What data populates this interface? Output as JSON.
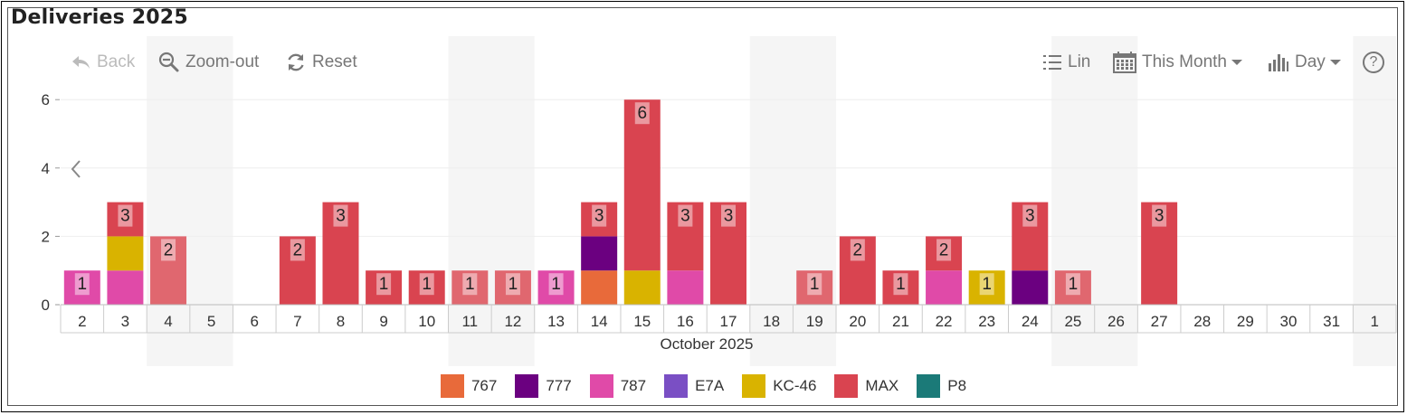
{
  "title": "Deliveries 2025",
  "toolbar": {
    "back_label": "Back",
    "zoom_out_label": "Zoom-out",
    "reset_label": "Reset",
    "scale_label": "Lin",
    "period_label": "This Month",
    "granularity_label": "Day",
    "help_label": "?"
  },
  "colors": {
    "767": "#e86a3a",
    "777": "#6b0080",
    "787": "#e04aa8",
    "E7A": "#7a4fc4",
    "KC-46": "#d9b300",
    "MAX": "#d94450",
    "P8": "#1b7a78",
    "MAX_light": "#e0676f",
    "gridline": "#eeeeee",
    "band": "#f5f5f5"
  },
  "chart_data": {
    "type": "bar",
    "stacked": true,
    "xlabel": "October 2025",
    "ylabel": "",
    "ylim": [
      0,
      6
    ],
    "yticks": [
      "0",
      "2",
      "4",
      "6"
    ],
    "categories": [
      "2",
      "3",
      "4",
      "5",
      "6",
      "7",
      "8",
      "9",
      "10",
      "11",
      "12",
      "13",
      "14",
      "15",
      "16",
      "17",
      "18",
      "19",
      "20",
      "21",
      "22",
      "23",
      "24",
      "25",
      "26",
      "27",
      "28",
      "29",
      "30",
      "31",
      "1"
    ],
    "weekend_bands": [
      "4-5",
      "11-12",
      "18-19",
      "25-26",
      "1"
    ],
    "series": [
      {
        "name": "767",
        "values": [
          0,
          0,
          0,
          0,
          0,
          0,
          0,
          0,
          0,
          0,
          0,
          0,
          1,
          0,
          0,
          0,
          0,
          0,
          0,
          0,
          0,
          0,
          0,
          0,
          0,
          0,
          0,
          0,
          0,
          0,
          0
        ]
      },
      {
        "name": "777",
        "values": [
          0,
          0,
          0,
          0,
          0,
          0,
          0,
          0,
          0,
          0,
          0,
          0,
          1,
          0,
          0,
          0,
          0,
          0,
          0,
          0,
          0,
          0,
          1,
          0,
          0,
          0,
          0,
          0,
          0,
          0,
          0
        ]
      },
      {
        "name": "787",
        "values": [
          1,
          1,
          0,
          0,
          0,
          0,
          0,
          0,
          0,
          0,
          0,
          1,
          0,
          0,
          1,
          0,
          0,
          0,
          0,
          0,
          1,
          0,
          0,
          0,
          0,
          0,
          0,
          0,
          0,
          0,
          0
        ]
      },
      {
        "name": "E7A",
        "values": [
          0,
          0,
          0,
          0,
          0,
          0,
          0,
          0,
          0,
          0,
          0,
          0,
          0,
          0,
          0,
          0,
          0,
          0,
          0,
          0,
          0,
          0,
          0,
          0,
          0,
          0,
          0,
          0,
          0,
          0,
          0
        ]
      },
      {
        "name": "KC-46",
        "values": [
          0,
          1,
          0,
          0,
          0,
          0,
          0,
          0,
          0,
          0,
          0,
          0,
          0,
          1,
          0,
          0,
          0,
          0,
          0,
          0,
          0,
          1,
          0,
          0,
          0,
          0,
          0,
          0,
          0,
          0,
          0
        ]
      },
      {
        "name": "MAX",
        "values": [
          0,
          1,
          2,
          0,
          0,
          2,
          3,
          1,
          1,
          1,
          1,
          0,
          1,
          5,
          2,
          3,
          0,
          1,
          2,
          1,
          1,
          0,
          2,
          1,
          0,
          3,
          0,
          0,
          0,
          0,
          0
        ]
      },
      {
        "name": "P8",
        "values": [
          0,
          0,
          0,
          0,
          0,
          0,
          0,
          0,
          0,
          0,
          0,
          0,
          0,
          0,
          0,
          0,
          0,
          0,
          0,
          0,
          0,
          0,
          0,
          0,
          0,
          0,
          0,
          0,
          0,
          0,
          0
        ]
      }
    ],
    "totals": [
      1,
      3,
      2,
      0,
      0,
      2,
      3,
      1,
      1,
      1,
      1,
      1,
      3,
      6,
      3,
      3,
      0,
      1,
      2,
      1,
      2,
      1,
      3,
      1,
      0,
      3,
      0,
      0,
      0,
      0,
      0
    ]
  },
  "legend": [
    {
      "key": "767",
      "label": "767"
    },
    {
      "key": "777",
      "label": "777"
    },
    {
      "key": "787",
      "label": "787"
    },
    {
      "key": "E7A",
      "label": "E7A"
    },
    {
      "key": "KC-46",
      "label": "KC-46"
    },
    {
      "key": "MAX",
      "label": "MAX"
    },
    {
      "key": "P8",
      "label": "P8"
    }
  ]
}
